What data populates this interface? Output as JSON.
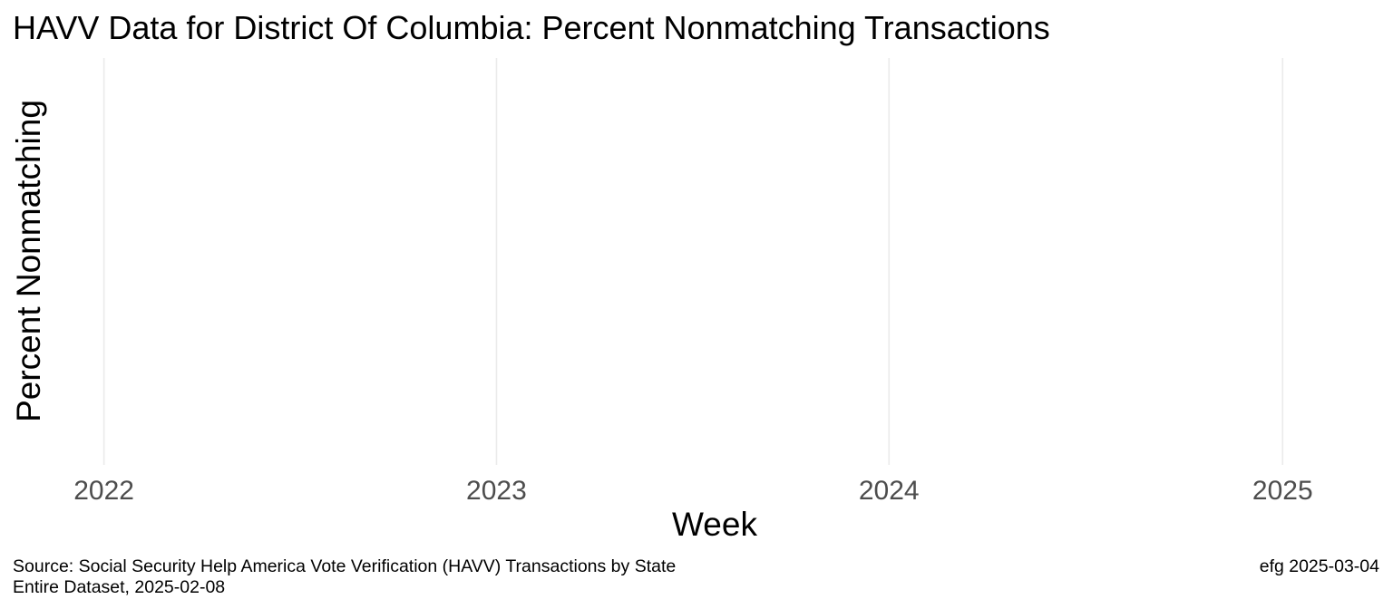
{
  "chart_data": {
    "type": "line",
    "title": "HAVV Data for District Of Columbia:  Percent Nonmatching Transactions",
    "xlabel": "Week",
    "ylabel": "Percent Nonmatching",
    "x_ticks": [
      "2022",
      "2023",
      "2024",
      "2025"
    ],
    "xlim": [
      "2021-10-09",
      "2025-04-01"
    ],
    "series": [],
    "grid": true,
    "legend": "none",
    "gridline_color": "#ebebeb",
    "tick_label_color": "#4d4d4d"
  },
  "caption": {
    "source_line1": "Source:  Social Security Help America Vote Verification (HAVV) Transactions by State",
    "source_line2": "Entire Dataset, 2025-02-08",
    "credit": "efg 2025-03-04"
  }
}
